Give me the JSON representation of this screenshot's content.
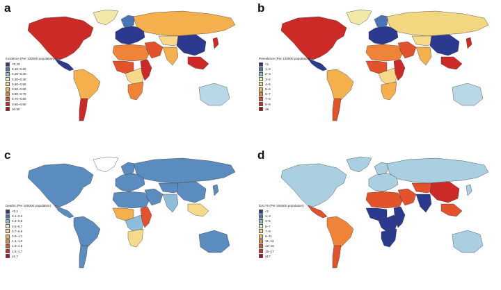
{
  "panels": [
    {
      "id": "a",
      "letter": "a",
      "legend_title": "Incidence (Per 100000 population)",
      "legend": [
        {
          "label": "<0.10",
          "color": "#2b3a8f"
        },
        {
          "label": "0.10–0.20",
          "color": "#4a74b4"
        },
        {
          "label": "0.20–0.30",
          "color": "#8fbcd8"
        },
        {
          "label": "0.30–0.40",
          "color": "#e6f0c8"
        },
        {
          "label": "0.40–0.50",
          "color": "#f7d98a"
        },
        {
          "label": "0.50–0.60",
          "color": "#f5b04e"
        },
        {
          "label": "0.60–0.70",
          "color": "#ef8438"
        },
        {
          "label": "0.70–0.80",
          "color": "#e2532c"
        },
        {
          "label": "0.80–0.90",
          "color": "#cc2a26"
        },
        {
          "label": "≥0.90",
          "color": "#a3131d"
        }
      ],
      "region_colors": {
        "north_america": "#cc2a26",
        "greenland": "#f2e9a8",
        "central_america": "#2b3a8f",
        "south_america": "#f5b04e",
        "south_america_south": "#cc2a26",
        "europe": "#2b3a8f",
        "scandinavia": "#4a74b4",
        "russia": "#f5b04e",
        "north_africa": "#ef8438",
        "west_africa": "#e2532c",
        "central_africa": "#f7d98a",
        "east_africa": "#cc2a26",
        "southern_africa": "#ef8438",
        "middle_east": "#e2532c",
        "central_asia": "#f7d98a",
        "south_asia": "#f5b04e",
        "china": "#2b3a8f",
        "southeast_asia": "#cc2a26",
        "japan": "#cc2a26",
        "australia": "#b8d8e8"
      }
    },
    {
      "id": "b",
      "letter": "b",
      "legend_title": "Prevalence (Per 100000 population)",
      "legend": [
        {
          "label": "<1",
          "color": "#2b3a8f"
        },
        {
          "label": "1–2",
          "color": "#4a74b4"
        },
        {
          "label": "2–3",
          "color": "#8fbcd8"
        },
        {
          "label": "3–4",
          "color": "#e6f0c8"
        },
        {
          "label": "4–5",
          "color": "#f7d98a"
        },
        {
          "label": "5–6",
          "color": "#f5b04e"
        },
        {
          "label": "6–7",
          "color": "#ef8438"
        },
        {
          "label": "7–8",
          "color": "#e2532c"
        },
        {
          "label": "8–9",
          "color": "#cc2a26"
        },
        {
          "label": "≥9",
          "color": "#a3131d"
        }
      ],
      "region_colors": {
        "north_america": "#cc2a26",
        "greenland": "#f2e9a8",
        "central_america": "#2b3a8f",
        "south_america": "#f5b04e",
        "south_america_south": "#e2532c",
        "europe": "#2b3a8f",
        "scandinavia": "#4a74b4",
        "russia": "#f2d780",
        "north_africa": "#ef8438",
        "west_africa": "#e2532c",
        "central_africa": "#f7d98a",
        "east_africa": "#cc2a26",
        "southern_africa": "#f5b04e",
        "middle_east": "#e2532c",
        "central_asia": "#f7d98a",
        "south_asia": "#f5b04e",
        "china": "#2b3a8f",
        "southeast_asia": "#cc2a26",
        "japan": "#cc2a26",
        "australia": "#b8d8e8"
      }
    },
    {
      "id": "c",
      "letter": "c",
      "legend_title": "Deaths (Per 100000 population)",
      "legend": [
        {
          "label": "<0.1",
          "color": "#2b3a8f"
        },
        {
          "label": "0.1–0.3",
          "color": "#4a74b4"
        },
        {
          "label": "0.3–0.5",
          "color": "#8fbcd8"
        },
        {
          "label": "0.5–0.7",
          "color": "#e6f0c8"
        },
        {
          "label": "0.7–0.9",
          "color": "#f7d98a"
        },
        {
          "label": "0.9–1.1",
          "color": "#f5b04e"
        },
        {
          "label": "1.1–1.3",
          "color": "#ef8438"
        },
        {
          "label": "1.3–1.5",
          "color": "#e2532c"
        },
        {
          "label": "1.5–1.7",
          "color": "#cc2a26"
        },
        {
          "label": "≥1.7",
          "color": "#a3131d"
        }
      ],
      "region_colors": {
        "north_america": "#5b8cc0",
        "greenland": "#ffffff",
        "central_america": "#5b8cc0",
        "south_america": "#5b8cc0",
        "south_america_south": "#5b8cc0",
        "europe": "#5b8cc0",
        "scandinavia": "#5b8cc0",
        "russia": "#5b8cc0",
        "north_africa": "#5b8cc0",
        "west_africa": "#f5b04e",
        "central_africa": "#8fbcd8",
        "east_africa": "#e2532c",
        "southern_africa": "#f7d98a",
        "middle_east": "#5b8cc0",
        "central_asia": "#5b8cc0",
        "south_asia": "#8fbcd8",
        "china": "#5b8cc0",
        "southeast_asia": "#f7d98a",
        "japan": "#5b8cc0",
        "australia": "#5b8cc0"
      }
    },
    {
      "id": "d",
      "letter": "d",
      "legend_title": "DALYs (Per 100000 population)",
      "legend": [
        {
          "label": "<1",
          "color": "#2b3a8f"
        },
        {
          "label": "1–3",
          "color": "#4a74b4"
        },
        {
          "label": "3–5",
          "color": "#8fbcd8"
        },
        {
          "label": "5–7",
          "color": "#e6f0c8"
        },
        {
          "label": "7–9",
          "color": "#f7d98a"
        },
        {
          "label": "9–11",
          "color": "#f5b04e"
        },
        {
          "label": "11–13",
          "color": "#ef8438"
        },
        {
          "label": "13–15",
          "color": "#e2532c"
        },
        {
          "label": "15–17",
          "color": "#cc2a26"
        },
        {
          "label": "≥17",
          "color": "#a3131d"
        }
      ],
      "region_colors": {
        "north_america": "#a9cfe0",
        "greenland": "#a9cfe0",
        "central_america": "#e2532c",
        "south_america": "#ef8438",
        "south_america_south": "#e2532c",
        "europe": "#a9cfe0",
        "scandinavia": "#a9cfe0",
        "russia": "#a9cfe0",
        "north_africa": "#e2532c",
        "west_africa": "#2b3a8f",
        "central_africa": "#2b3a8f",
        "east_africa": "#2b3a8f",
        "southern_africa": "#2b3a8f",
        "middle_east": "#e2532c",
        "central_asia": "#e2532c",
        "south_asia": "#2b3a8f",
        "china": "#cc2a26",
        "southeast_asia": "#e2532c",
        "japan": "#a9cfe0",
        "australia": "#a9cfe0"
      }
    }
  ]
}
